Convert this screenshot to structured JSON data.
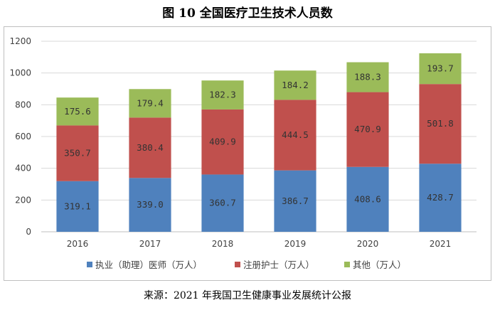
{
  "title": "图 10  全国医疗卫生技术人员数",
  "source": "来源：2021 年我国卫生健康事业发展统计公报",
  "colors": {
    "series": [
      "#4f81bd",
      "#c0504d",
      "#9bbb59"
    ],
    "grid": "#d9d9d9",
    "axis": "#bfbfbf",
    "text": "#404040"
  },
  "chart_data": {
    "type": "bar",
    "stacked": true,
    "categories": [
      "2016",
      "2017",
      "2018",
      "2019",
      "2020",
      "2021"
    ],
    "series": [
      {
        "name": "执业（助理）医师（万人）",
        "values": [
          319.1,
          339.0,
          360.7,
          386.7,
          408.6,
          428.7
        ],
        "labels": [
          "319.1",
          "339.0",
          "360.7",
          "386.7",
          "408.6",
          "428.7"
        ]
      },
      {
        "name": "注册护士（万人）",
        "values": [
          350.7,
          380.4,
          409.9,
          444.5,
          470.9,
          501.8
        ],
        "labels": [
          "350.7",
          "380.4",
          "409.9",
          "444.5",
          "470.9",
          "501.8"
        ]
      },
      {
        "name": "其他（万人）",
        "values": [
          175.6,
          179.4,
          182.3,
          184.2,
          188.3,
          193.7
        ],
        "labels": [
          "175.6",
          "179.4",
          "182.3",
          "184.2",
          "188.3",
          "193.7"
        ]
      }
    ],
    "ylim": [
      0,
      1200
    ],
    "yticks": [
      0,
      200,
      400,
      600,
      800,
      1000,
      1200
    ],
    "grid": true,
    "legend": "bottom"
  }
}
